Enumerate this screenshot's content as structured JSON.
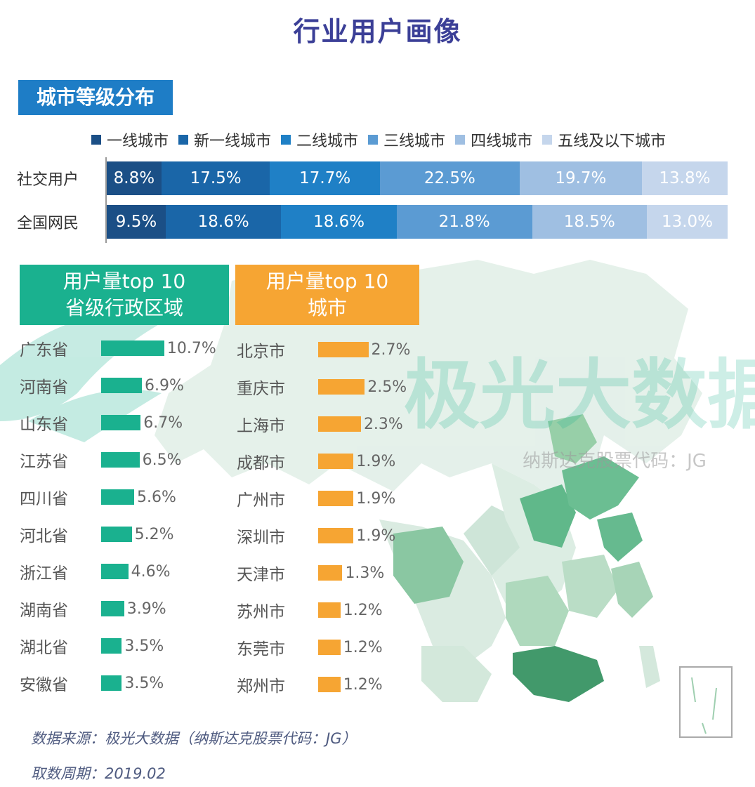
{
  "title": "行业用户画像",
  "section_title": "城市等级分布",
  "legend_colors": [
    "#1b4f86",
    "#1a66a8",
    "#1f80c6",
    "#5b9bd3",
    "#9fbfe2",
    "#c5d6ec"
  ],
  "text_colors": [
    "#ffffff",
    "#ffffff",
    "#ffffff",
    "#ffffff",
    "#ffffff",
    "#ffffff"
  ],
  "prov_color": "#1ab18f",
  "city_color": "#f6a533",
  "watermark": {
    "brand": "极光大数据",
    "code": "纳斯达克股票代码：JG"
  },
  "chart_data": [
    {
      "type": "bar",
      "stacked": true,
      "orientation": "horizontal",
      "title": "城市等级分布",
      "categories": [
        "社交用户",
        "全国网民"
      ],
      "series": [
        {
          "name": "一线城市",
          "values": [
            8.8,
            9.5
          ],
          "labels": [
            "8.8%",
            "9.5%"
          ]
        },
        {
          "name": "新一线城市",
          "values": [
            17.5,
            18.6
          ],
          "labels": [
            "17.5%",
            "18.6%"
          ]
        },
        {
          "name": "二线城市",
          "values": [
            17.7,
            18.6
          ],
          "labels": [
            "17.7%",
            "18.6%"
          ]
        },
        {
          "name": "三线城市",
          "values": [
            22.5,
            21.8
          ],
          "labels": [
            "22.5%",
            "21.8%"
          ]
        },
        {
          "name": "四线城市",
          "values": [
            19.7,
            18.5
          ],
          "labels": [
            "19.7%",
            "18.5%"
          ]
        },
        {
          "name": "五线及以下城市",
          "values": [
            13.8,
            13.0
          ],
          "labels": [
            "13.8%",
            "13.0%"
          ]
        }
      ],
      "legend": "top"
    },
    {
      "type": "bar",
      "orientation": "horizontal",
      "title": "用户量top 10 省级行政区域",
      "categories": [
        "广东省",
        "河南省",
        "山东省",
        "江苏省",
        "四川省",
        "河北省",
        "浙江省",
        "湖南省",
        "湖北省",
        "安徽省"
      ],
      "values": [
        10.7,
        6.9,
        6.7,
        6.5,
        5.6,
        5.2,
        4.6,
        3.9,
        3.5,
        3.5
      ],
      "labels": [
        "10.7%",
        "6.9%",
        "6.7%",
        "6.5%",
        "5.6%",
        "5.2%",
        "4.6%",
        "3.9%",
        "3.5%",
        "3.5%"
      ]
    },
    {
      "type": "bar",
      "orientation": "horizontal",
      "title": "用户量top 10 城市",
      "categories": [
        "北京市",
        "重庆市",
        "上海市",
        "成都市",
        "广州市",
        "深圳市",
        "天津市",
        "苏州市",
        "东莞市",
        "郑州市"
      ],
      "values": [
        2.7,
        2.5,
        2.3,
        1.9,
        1.9,
        1.9,
        1.3,
        1.2,
        1.2,
        1.2
      ],
      "labels": [
        "2.7%",
        "2.5%",
        "2.3%",
        "1.9%",
        "1.9%",
        "1.9%",
        "1.3%",
        "1.2%",
        "1.2%",
        "1.2%"
      ]
    }
  ],
  "panels": {
    "prov_title_1": "用户量top 10",
    "prov_title_2": "省级行政区域",
    "city_title_1": "用户量top 10",
    "city_title_2": "城市"
  },
  "footer": {
    "source": "数据来源：极光大数据（纳斯达克股票代码：JG）",
    "period": "取数周期：2019.02"
  }
}
